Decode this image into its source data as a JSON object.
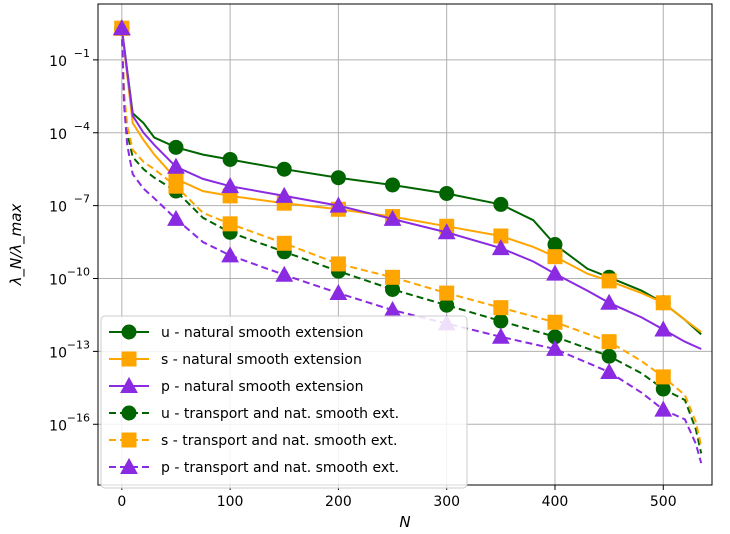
{
  "chart_data": {
    "type": "line",
    "title": "",
    "xlabel": "N",
    "ylabel": "λ_N/λ_max",
    "yscale": "log",
    "xlim": [
      -22,
      545
    ],
    "ylim_exponent": [
      -18.5,
      1.3
    ],
    "xticks": [
      0,
      100,
      200,
      300,
      400,
      500
    ],
    "xtick_labels": [
      "0",
      "100",
      "200",
      "300",
      "400",
      "500"
    ],
    "yticks_exponent": [
      -16,
      -13,
      -10,
      -7,
      -4,
      -1
    ],
    "ytick_bases": [
      "10",
      "10",
      "10",
      "10",
      "10",
      "10"
    ],
    "ytick_exponents": [
      "−16",
      "−13",
      "−10",
      "−7",
      "−4",
      "−1"
    ],
    "grid": true,
    "legend_position": "lower-left",
    "colors": {
      "u": "#006400",
      "s": "#FFA500",
      "p": "#8A2BE2"
    },
    "series": [
      {
        "name": "u - natural smooth extension",
        "key": "u",
        "linestyle": "solid",
        "marker": "circle",
        "color": "#006400",
        "x": [
          0,
          10,
          20,
          30,
          50,
          75,
          100,
          150,
          200,
          250,
          300,
          350,
          380,
          400,
          430,
          450,
          480,
          500,
          520,
          535
        ],
        "y_exp": [
          0.3,
          -3.2,
          -3.6,
          -4.2,
          -4.6,
          -4.9,
          -5.1,
          -5.5,
          -5.85,
          -6.15,
          -6.5,
          -6.95,
          -7.6,
          -8.6,
          -9.6,
          -9.95,
          -10.5,
          -11.0,
          -11.7,
          -12.3
        ]
      },
      {
        "name": "s - natural smooth extension",
        "key": "s",
        "linestyle": "solid",
        "marker": "square",
        "color": "#FFA500",
        "x": [
          0,
          10,
          20,
          30,
          50,
          75,
          100,
          150,
          200,
          250,
          300,
          350,
          380,
          400,
          430,
          450,
          480,
          500,
          520,
          535
        ],
        "y_exp": [
          0.3,
          -3.6,
          -4.3,
          -4.9,
          -5.9,
          -6.4,
          -6.6,
          -6.9,
          -7.15,
          -7.45,
          -7.85,
          -8.25,
          -8.7,
          -9.1,
          -9.8,
          -10.1,
          -10.6,
          -11.0,
          -11.7,
          -12.2
        ]
      },
      {
        "name": "p - natural smooth extension",
        "key": "p",
        "linestyle": "solid",
        "marker": "triangle",
        "color": "#8A2BE2",
        "x": [
          0,
          10,
          20,
          30,
          50,
          75,
          100,
          150,
          200,
          250,
          300,
          350,
          380,
          400,
          430,
          450,
          480,
          500,
          520,
          535
        ],
        "y_exp": [
          0.3,
          -3.3,
          -4.0,
          -4.5,
          -5.4,
          -5.9,
          -6.2,
          -6.6,
          -7.0,
          -7.55,
          -8.1,
          -8.75,
          -9.3,
          -9.8,
          -10.5,
          -11.0,
          -11.6,
          -12.1,
          -12.6,
          -12.9
        ]
      },
      {
        "name": "u - transport and nat. smooth ext.",
        "key": "u",
        "linestyle": "dashed",
        "marker": "circle",
        "color": "#006400",
        "x": [
          0,
          2,
          5,
          10,
          20,
          30,
          50,
          75,
          100,
          150,
          200,
          250,
          300,
          350,
          400,
          450,
          480,
          500,
          520,
          530,
          535
        ],
        "y_exp": [
          0.3,
          -2.5,
          -4.0,
          -5.0,
          -5.5,
          -5.85,
          -6.4,
          -7.5,
          -8.1,
          -8.9,
          -9.7,
          -10.45,
          -11.1,
          -11.75,
          -12.4,
          -13.2,
          -13.9,
          -14.55,
          -15.0,
          -16.2,
          -17.2
        ]
      },
      {
        "name": "s - transport and nat. smooth ext.",
        "key": "s",
        "linestyle": "dashed",
        "marker": "square",
        "color": "#FFA500",
        "x": [
          0,
          2,
          5,
          10,
          20,
          30,
          50,
          75,
          100,
          150,
          200,
          250,
          300,
          350,
          400,
          450,
          480,
          500,
          520,
          530,
          535
        ],
        "y_exp": [
          0.3,
          -2.3,
          -3.7,
          -4.7,
          -5.2,
          -5.5,
          -6.2,
          -7.3,
          -7.75,
          -8.55,
          -9.4,
          -9.95,
          -10.6,
          -11.2,
          -11.8,
          -12.6,
          -13.4,
          -14.05,
          -14.8,
          -15.9,
          -16.9
        ]
      },
      {
        "name": "p - transport and nat. smooth ext.",
        "key": "p",
        "linestyle": "dashed",
        "marker": "triangle",
        "color": "#8A2BE2",
        "x": [
          0,
          2,
          5,
          10,
          20,
          30,
          50,
          75,
          100,
          150,
          200,
          250,
          300,
          350,
          400,
          450,
          480,
          500,
          520,
          530,
          535
        ],
        "y_exp": [
          0.3,
          -2.8,
          -4.5,
          -5.7,
          -6.3,
          -6.7,
          -7.55,
          -8.5,
          -9.05,
          -9.85,
          -10.6,
          -11.3,
          -11.85,
          -12.4,
          -12.9,
          -13.85,
          -14.7,
          -15.4,
          -15.8,
          -16.8,
          -17.6
        ]
      }
    ],
    "marker_x": [
      0,
      50,
      100,
      150,
      200,
      250,
      300,
      350,
      400,
      450,
      500
    ]
  }
}
